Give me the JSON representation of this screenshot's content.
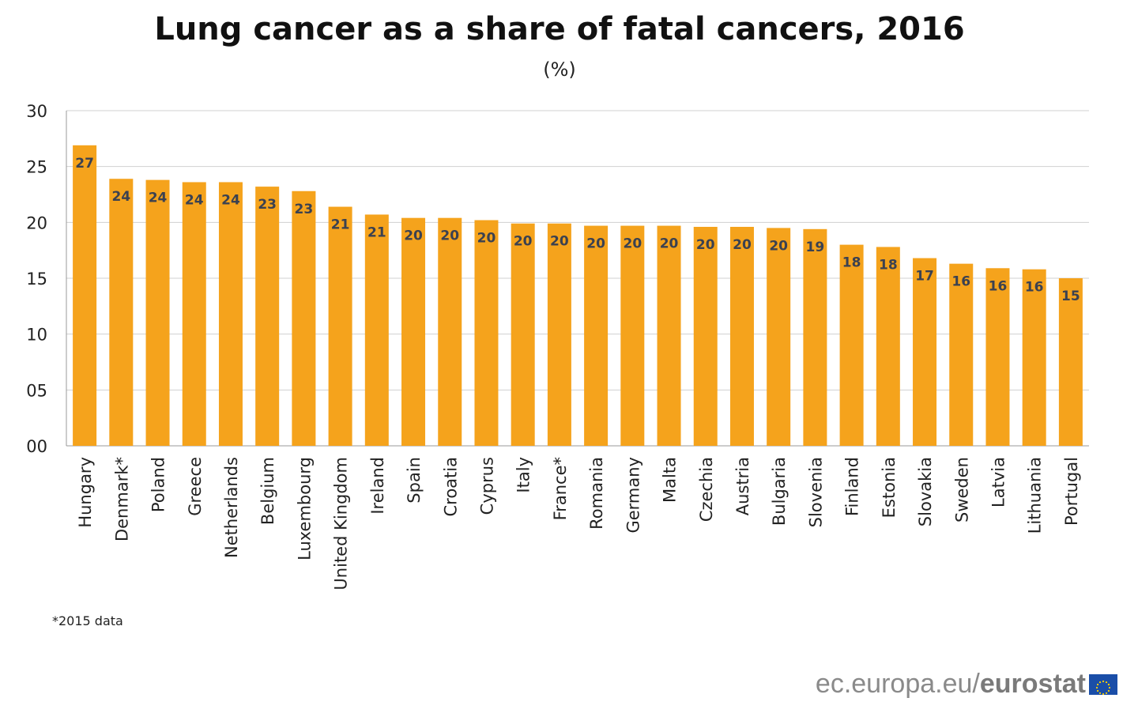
{
  "chart_data": {
    "type": "bar",
    "title": "Lung cancer as a share of fatal cancers, 2016",
    "subtitle": "(%)",
    "xlabel": "",
    "ylabel": "",
    "ylim": [
      0,
      30
    ],
    "yticks": [
      0,
      5,
      10,
      15,
      20,
      25,
      30
    ],
    "ytick_labels": [
      "00",
      "05",
      "10",
      "15",
      "20",
      "25",
      "30"
    ],
    "grid": true,
    "categories": [
      "Hungary",
      "Denmark*",
      "Poland",
      "Greece",
      "Netherlands",
      "Belgium",
      "Luxembourg",
      "United Kingdom",
      "Ireland",
      "Spain",
      "Croatia",
      "Cyprus",
      "Italy",
      "France*",
      "Romania",
      "Germany",
      "Malta",
      "Czechia",
      "Austria",
      "Bulgaria",
      "Slovenia",
      "Finland",
      "Estonia",
      "Slovakia",
      "Sweden",
      "Latvia",
      "Lithuania",
      "Portugal"
    ],
    "values": [
      26.9,
      23.9,
      23.8,
      23.6,
      23.6,
      23.2,
      22.8,
      21.4,
      20.7,
      20.4,
      20.4,
      20.2,
      19.9,
      19.9,
      19.7,
      19.7,
      19.7,
      19.6,
      19.6,
      19.5,
      19.4,
      18.0,
      17.8,
      16.8,
      16.3,
      15.9,
      15.8,
      15.0
    ],
    "data_labels": [
      "27",
      "24",
      "24",
      "24",
      "24",
      "23",
      "23",
      "21",
      "21",
      "20",
      "20",
      "20",
      "20",
      "20",
      "20",
      "20",
      "20",
      "20",
      "20",
      "20",
      "19",
      "18",
      "18",
      "17",
      "16",
      "16",
      "16",
      "15"
    ],
    "bar_color": "#f5a31c",
    "label_color": "#3b4150"
  },
  "footnote": "*2015 data",
  "source": {
    "prefix": "ec.europa.eu/",
    "brand": "eurostat"
  }
}
